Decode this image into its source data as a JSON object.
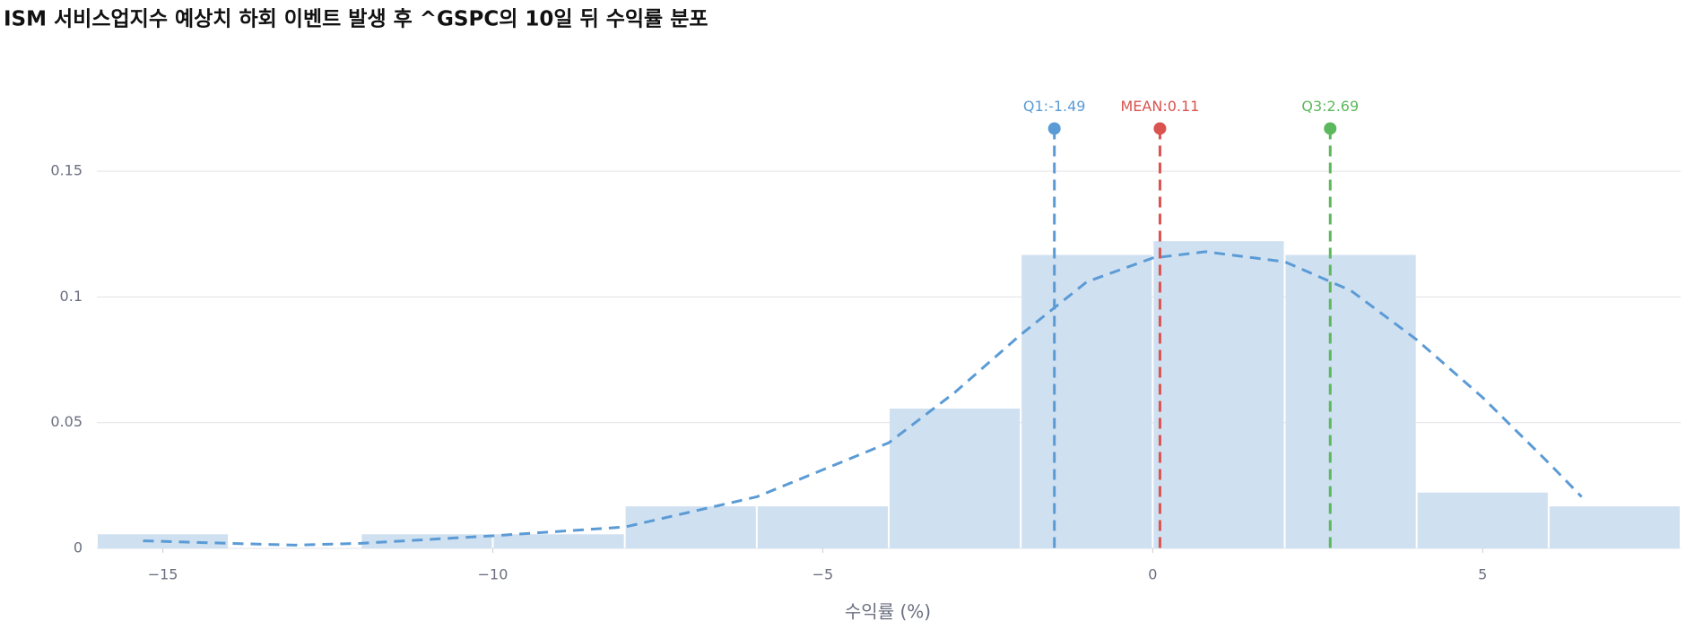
{
  "chart_data": {
    "type": "histogram",
    "title": "ISM 서비스업지수 예상치 하회 이벤트 발생 후 ^GSPC의 10일 뒤 수익률 분포",
    "x_label": "수익률 (%)",
    "bins": [
      -16,
      -14,
      -12,
      -10,
      -8,
      -6,
      -4,
      -2,
      0,
      2,
      4,
      6,
      8
    ],
    "values": [
      0.0056,
      0,
      0.0056,
      0.0056,
      0.0167,
      0.0167,
      0.0556,
      0.1167,
      0.1222,
      0.1167,
      0.0222,
      0.0167
    ],
    "color": "#cfe0f1",
    "kde": {
      "color": "#5b9bd5",
      "x": [
        -15.3,
        -14,
        -13,
        -12,
        -10,
        -8,
        -6,
        -4,
        -3,
        -2,
        -1,
        0,
        0.8,
        2,
        3,
        4,
        5,
        6,
        6.5
      ],
      "values": [
        0.003,
        0.002,
        0.0013,
        0.002,
        0.005,
        0.0085,
        0.0205,
        0.042,
        0.062,
        0.085,
        0.106,
        0.1155,
        0.118,
        0.114,
        0.1026,
        0.083,
        0.06,
        0.034,
        0.0205
      ]
    },
    "annotations": [
      {
        "label": "Q1:-1.49",
        "value": -1.49,
        "color": "#5b9bd5"
      },
      {
        "label": "MEAN:0.11",
        "value": 0.11,
        "color": "#d9534f"
      },
      {
        "label": "Q3:2.69",
        "value": 2.69,
        "color": "#5cb85c"
      }
    ],
    "marker_y": 0.167,
    "xlim": [
      -16,
      8
    ],
    "ylim": [
      0,
      0.175
    ],
    "xticks": [
      {
        "value": -15,
        "label": "−15"
      },
      {
        "value": -10,
        "label": "−10"
      },
      {
        "value": -5,
        "label": "−5"
      },
      0,
      5
    ],
    "yticks": [
      0,
      0.05,
      0.1,
      0.15
    ],
    "grid": true
  }
}
